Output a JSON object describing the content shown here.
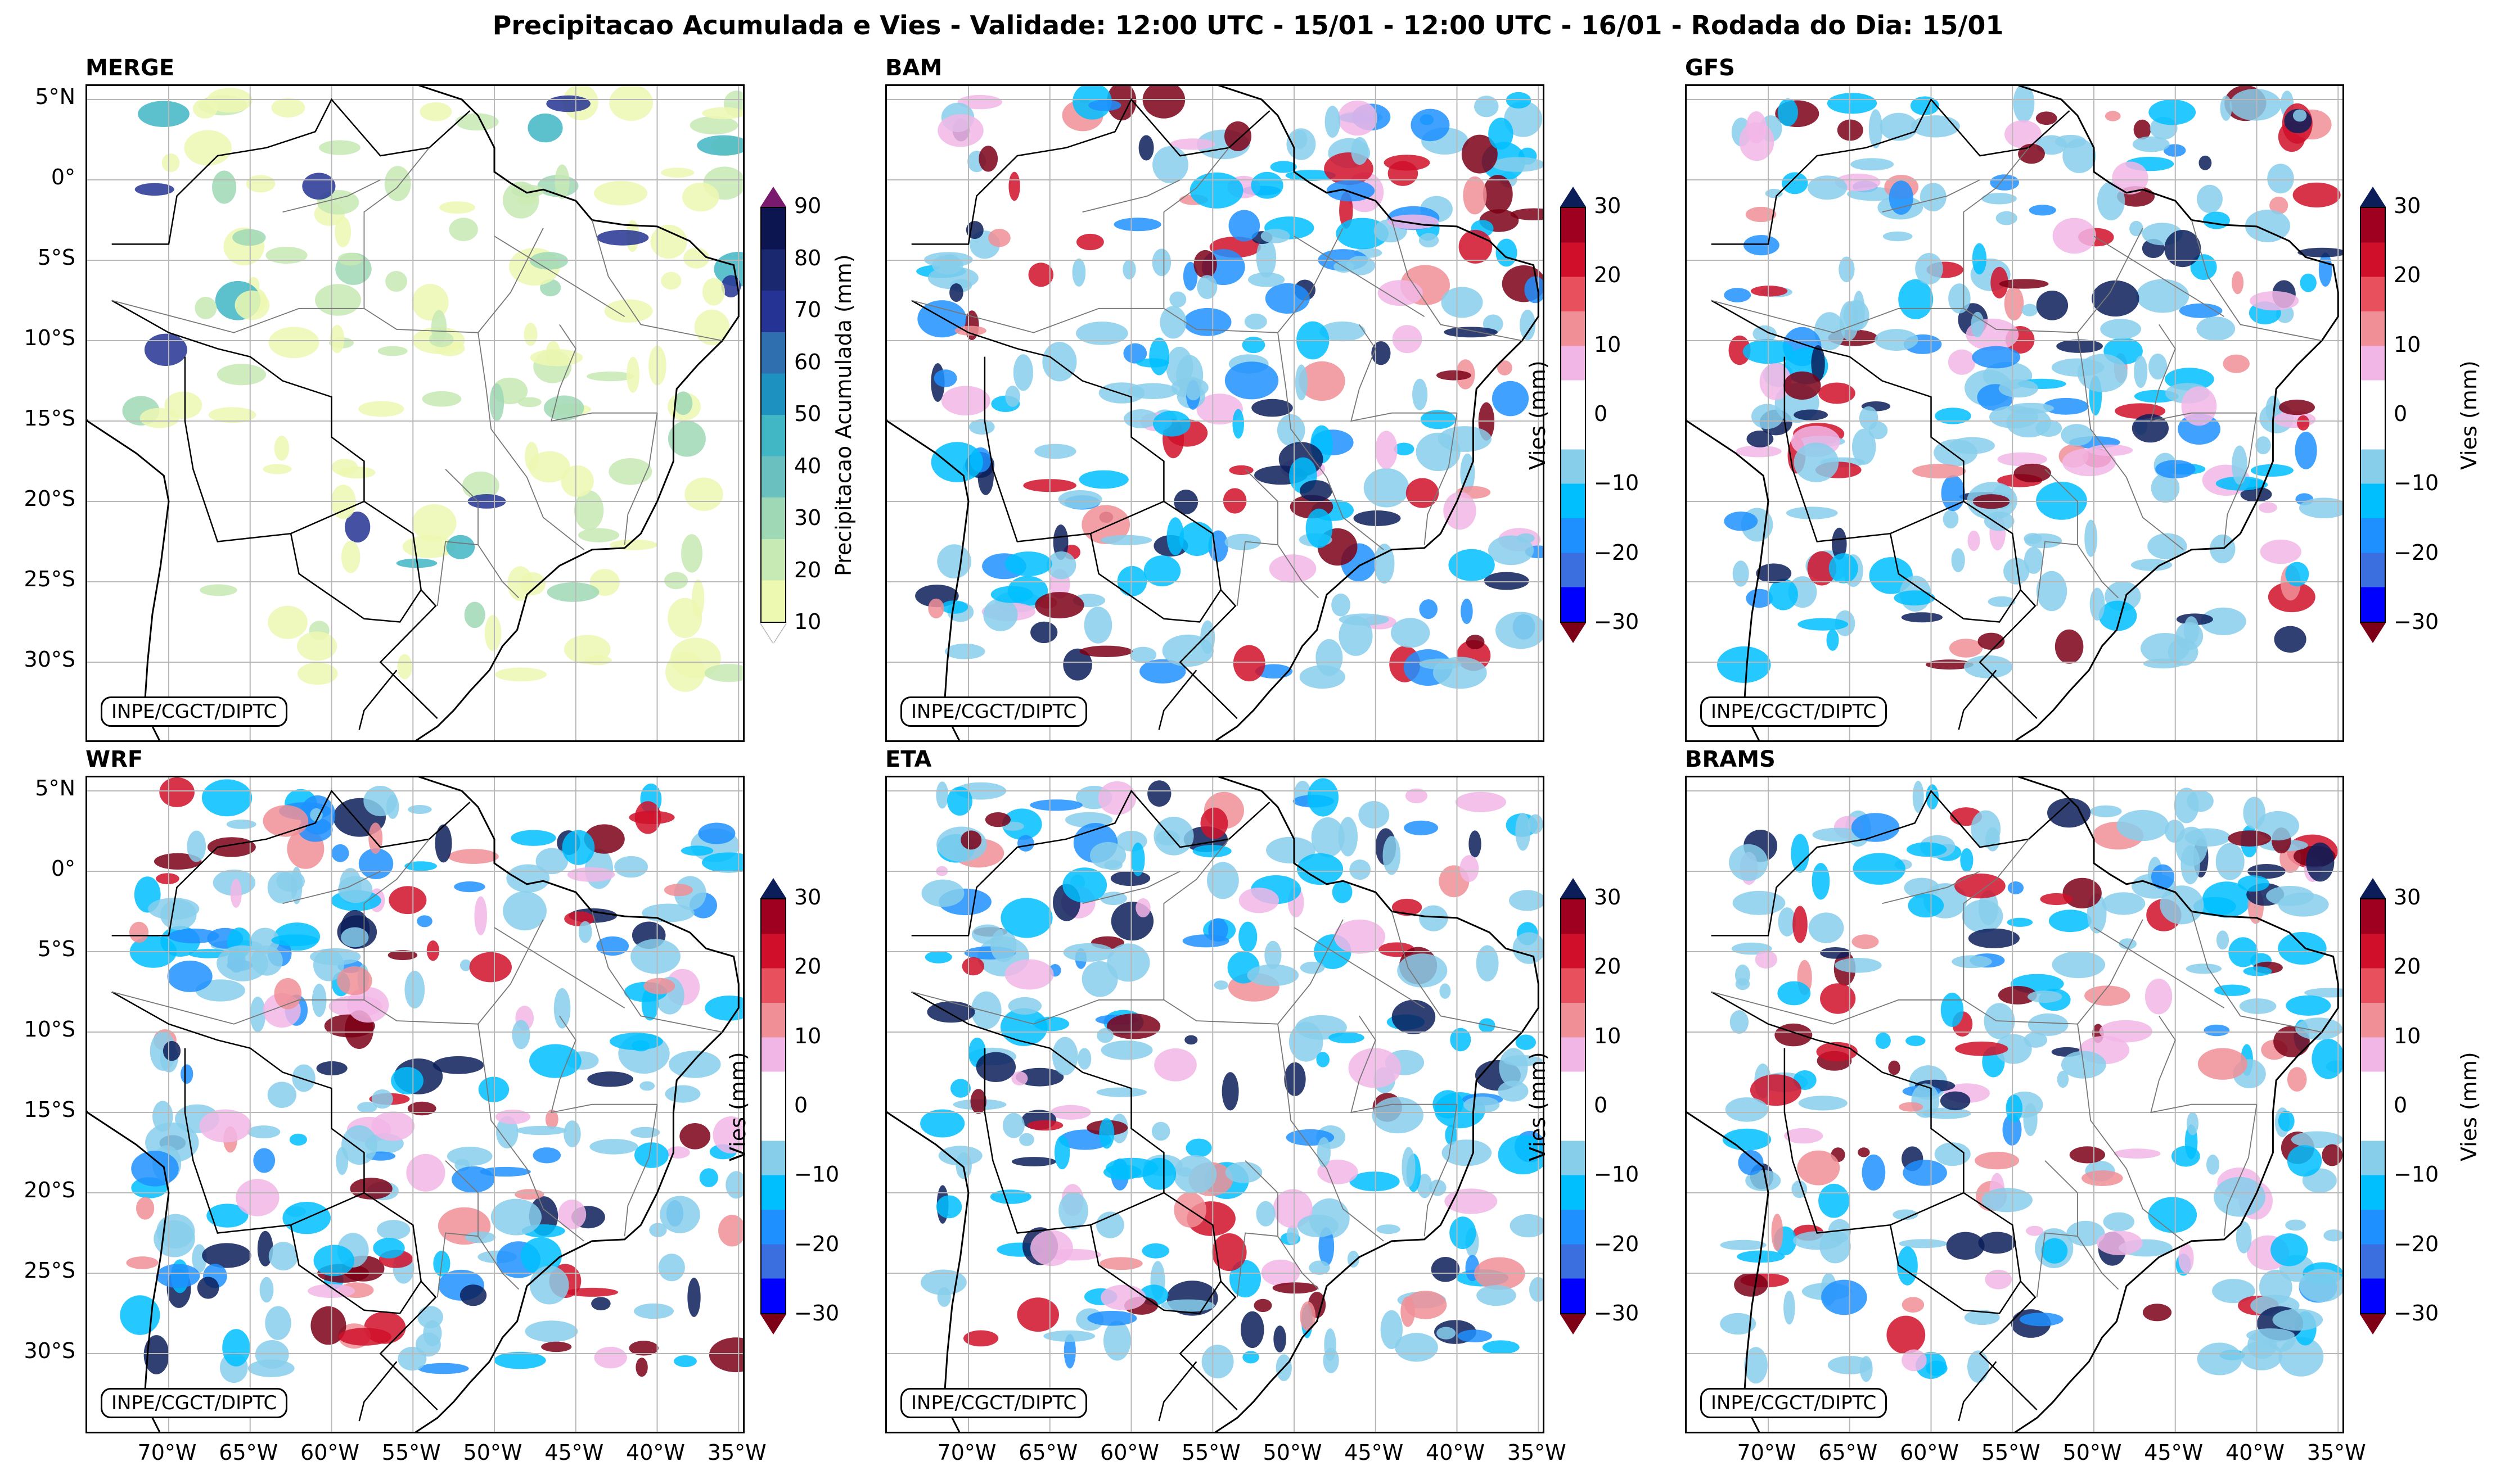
{
  "figure_title": "Precipitacao Acumulada e Vies - Validade: 12:00 UTC - 15/01 - 12:00 UTC - 16/01 - Rodada do Dia: 15/01",
  "credit": "INPE/CGCT/DIPTC",
  "lat_labels": [
    "5°N",
    "0°",
    "5°S",
    "10°S",
    "15°S",
    "20°S",
    "25°S",
    "30°S"
  ],
  "lon_labels": [
    "70°W",
    "65°W",
    "60°W",
    "55°W",
    "50°W",
    "45°W",
    "40°W",
    "35°W"
  ],
  "panels": [
    {
      "name": "MERGE",
      "kind": "precip"
    },
    {
      "name": "BAM",
      "kind": "bias"
    },
    {
      "name": "GFS",
      "kind": "bias"
    },
    {
      "name": "WRF",
      "kind": "bias"
    },
    {
      "name": "ETA",
      "kind": "bias"
    },
    {
      "name": "BRAMS",
      "kind": "bias"
    }
  ],
  "precip_colorbar": {
    "label": "Precipitacao Acumulada (mm)",
    "ticks": [
      "90",
      "80",
      "70",
      "60",
      "50",
      "40",
      "30",
      "20",
      "10"
    ],
    "colors": [
      "#edf8b1",
      "#c7e9b4",
      "#9fd8b5",
      "#6ac0bf",
      "#41b6c4",
      "#1d91c0",
      "#2f6fb0",
      "#253494",
      "#1a2870",
      "#0c1550"
    ],
    "over_color": "#7a1a6e"
  },
  "bias_colorbar": {
    "label": "Vies (mm)",
    "ticks": [
      "30",
      "20",
      "10",
      "0",
      "−10",
      "−20",
      "−30"
    ],
    "colors": [
      "#0000ff",
      "#3b6fe0",
      "#1e90ff",
      "#00bfff",
      "#87ceeb",
      "#ffffff",
      "#ffffff",
      "#f2b6e6",
      "#f08f96",
      "#e8505e",
      "#d0102a",
      "#a00020"
    ],
    "over_color": "#0c1e5a",
    "under_color": "#7d0016"
  }
}
